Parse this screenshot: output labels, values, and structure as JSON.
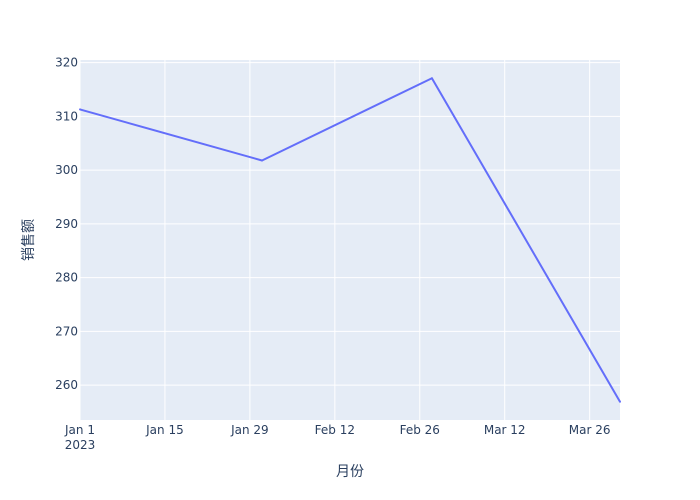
{
  "chart_data": {
    "type": "line",
    "xlabel": "月份",
    "ylabel": "销售额",
    "x_ticks": [
      {
        "date": "2023-01-01",
        "label": "Jan 1",
        "sublabel": "2023"
      },
      {
        "date": "2023-01-15",
        "label": "Jan 15",
        "sublabel": ""
      },
      {
        "date": "2023-01-29",
        "label": "Jan 29",
        "sublabel": ""
      },
      {
        "date": "2023-02-12",
        "label": "Feb 12",
        "sublabel": ""
      },
      {
        "date": "2023-02-26",
        "label": "Feb 26",
        "sublabel": ""
      },
      {
        "date": "2023-03-12",
        "label": "Mar 12",
        "sublabel": ""
      },
      {
        "date": "2023-03-26",
        "label": "Mar 26",
        "sublabel": ""
      }
    ],
    "y_ticks": [
      260,
      270,
      280,
      290,
      300,
      310,
      320
    ],
    "xlim": [
      "2023-01-01",
      "2023-03-31"
    ],
    "ylim": [
      253.5,
      320.5
    ],
    "grid": true,
    "series": [
      {
        "color": "#636efa",
        "points": [
          {
            "x": "2023-01-01",
            "y": 311.3
          },
          {
            "x": "2023-01-31",
            "y": 301.8
          },
          {
            "x": "2023-02-28",
            "y": 317.1
          },
          {
            "x": "2023-03-31",
            "y": 256.9
          }
        ]
      }
    ]
  },
  "colors": {
    "plot_background": "#e5ecf6",
    "gridline": "#ffffff",
    "text": "#2a3f5f"
  }
}
